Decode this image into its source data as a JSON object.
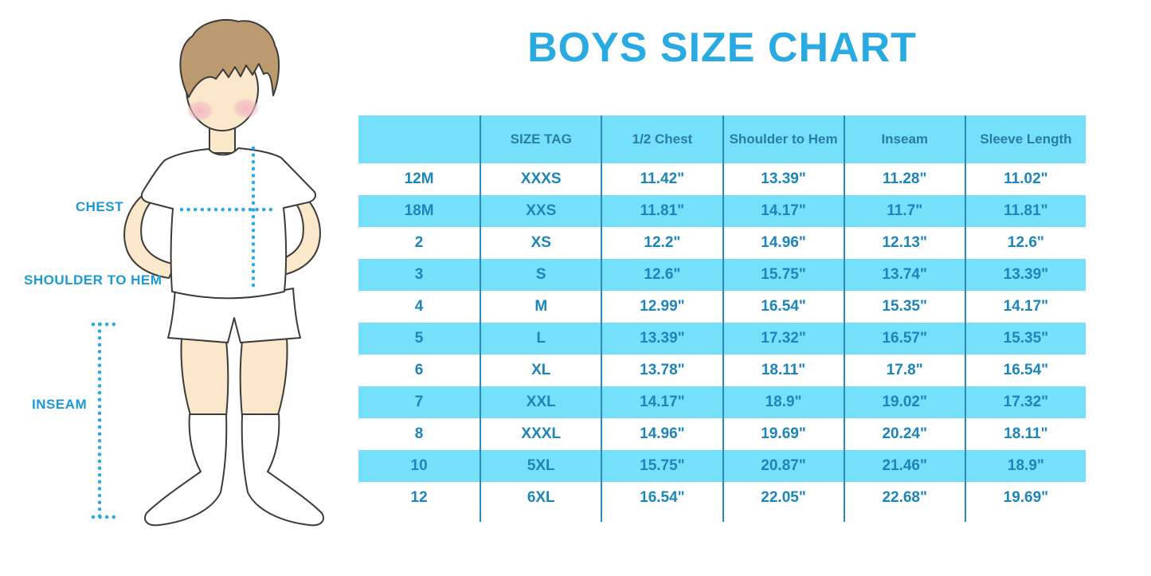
{
  "diagram": {
    "chest_label": "CHEST",
    "shoulder_to_hem_label": "SHOULDER TO HEM",
    "inseam_label": "INSEAM"
  },
  "chart_data": {
    "type": "table",
    "title": "BOYS SIZE CHART",
    "columns": [
      "",
      "SIZE TAG",
      "1/2 Chest",
      "Shoulder to Hem",
      "Inseam",
      "Sleeve Length"
    ],
    "rows": [
      [
        "12M",
        "XXXS",
        "11.42\"",
        "13.39\"",
        "11.28\"",
        "11.02\""
      ],
      [
        "18M",
        "XXS",
        "11.81\"",
        "14.17\"",
        "11.7\"",
        "11.81\""
      ],
      [
        "2",
        "XS",
        "12.2\"",
        "14.96\"",
        "12.13\"",
        "12.6\""
      ],
      [
        "3",
        "S",
        "12.6\"",
        "15.75\"",
        "13.74\"",
        "13.39\""
      ],
      [
        "4",
        "M",
        "12.99\"",
        "16.54\"",
        "15.35\"",
        "14.17\""
      ],
      [
        "5",
        "L",
        "13.39\"",
        "17.32\"",
        "16.57\"",
        "15.35\""
      ],
      [
        "6",
        "XL",
        "13.78\"",
        "18.11\"",
        "17.8\"",
        "16.54\""
      ],
      [
        "7",
        "XXL",
        "14.17\"",
        "18.9\"",
        "19.02\"",
        "17.32\""
      ],
      [
        "8",
        "XXXL",
        "14.96\"",
        "19.69\"",
        "20.24\"",
        "18.11\""
      ],
      [
        "10",
        "5XL",
        "15.75\"",
        "20.87\"",
        "21.46\"",
        "18.9\""
      ],
      [
        "12",
        "6XL",
        "16.54\"",
        "22.05\"",
        "22.68\"",
        "19.69\""
      ]
    ],
    "layout_hints": {
      "alternating_row_fill": "header and every second data row filled light cyan",
      "grid": "vertical column separators only"
    }
  },
  "colors": {
    "title": "#29ABE2",
    "table_fill": "#75E0FA",
    "separator": "#2E89BA",
    "header_text": "#2A7CA6",
    "body_text": "#1C85BA",
    "label_text": "#1B9AD7",
    "dotted_line": "#29ABE2",
    "skin": "#FBE7C9",
    "hair": "#BC9A70",
    "cheek": "#F1B8C4"
  }
}
